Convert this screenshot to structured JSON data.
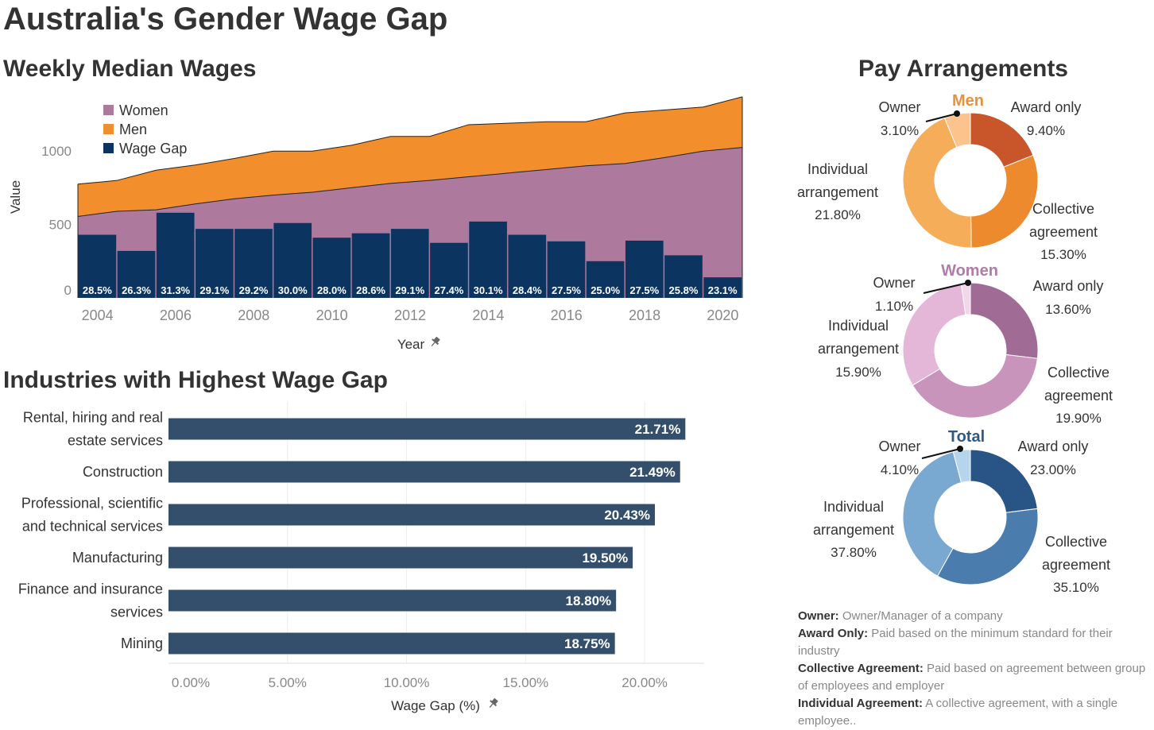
{
  "title": "Australia's Gender Wage Gap",
  "colors": {
    "women": "#ad7a9d",
    "men": "#f28e2c",
    "gap": "#0b3460",
    "industry_bar": "#344f6c",
    "text": "#333333",
    "muted": "#888888"
  },
  "icons": {
    "pin": "pin-icon"
  },
  "chart_data": [
    {
      "type": "area",
      "title": "Weekly Median Wages",
      "xlabel": "Year",
      "ylabel": "Value",
      "x": [
        2004,
        2005,
        2006,
        2007,
        2008,
        2009,
        2010,
        2011,
        2012,
        2013,
        2014,
        2015,
        2016,
        2017,
        2018,
        2019,
        2020,
        2021
      ],
      "x_ticks": [
        "2004",
        "2006",
        "2008",
        "2010",
        "2012",
        "2014",
        "2016",
        "2018",
        "2020"
      ],
      "y_ticks": [
        "0",
        "500",
        "1000"
      ],
      "ylim": [
        0,
        1380
      ],
      "legend": "top-left",
      "series": [
        {
          "name": "Women",
          "values": [
            555,
            590,
            600,
            640,
            675,
            700,
            720,
            750,
            780,
            800,
            825,
            850,
            875,
            900,
            915,
            955,
            1000,
            1025
          ]
        },
        {
          "name": "Men",
          "values": [
            775,
            800,
            870,
            905,
            950,
            1000,
            1000,
            1040,
            1100,
            1100,
            1180,
            1190,
            1200,
            1200,
            1260,
            1280,
            1300,
            1370
          ]
        },
        {
          "name": "Wage Gap",
          "values": [
            430,
            320,
            580,
            470,
            470,
            510,
            410,
            440,
            470,
            375,
            520,
            430,
            385,
            250,
            390,
            290,
            140,
            140
          ]
        }
      ],
      "gap_labels": [
        "28.5%",
        "26.3%",
        "31.3%",
        "29.1%",
        "29.2%",
        "30.0%",
        "28.0%",
        "28.6%",
        "29.1%",
        "27.4%",
        "30.1%",
        "28.4%",
        "27.5%",
        "25.0%",
        "27.5%",
        "25.8%",
        "23.1%"
      ]
    },
    {
      "type": "bar",
      "title": "Industries with Highest Wage Gap",
      "orientation": "horizontal",
      "xlabel": "Wage Gap (%)",
      "ylabel": "",
      "categories": [
        [
          "Rental, hiring and real",
          "estate services"
        ],
        [
          "Construction"
        ],
        [
          "Professional, scientific",
          "and technical services"
        ],
        [
          "Manufacturing"
        ],
        [
          "Finance and insurance",
          "services"
        ],
        [
          "Mining"
        ]
      ],
      "values": [
        21.71,
        21.49,
        20.43,
        19.5,
        18.8,
        18.75
      ],
      "value_labels": [
        "21.71%",
        "21.49%",
        "20.43%",
        "19.50%",
        "18.80%",
        "18.75%"
      ],
      "xlim": [
        0,
        22.5
      ],
      "x_ticks": [
        "0.00%",
        "5.00%",
        "10.00%",
        "15.00%",
        "20.00%"
      ]
    },
    {
      "type": "pie",
      "title": "Pay Arrangements",
      "donuts": [
        {
          "name": "Men",
          "name_color": "#e8913a",
          "slices": [
            {
              "label": "Award only",
              "value": 9.4,
              "text": "9.40%",
              "color": "#c9552a"
            },
            {
              "label": "Collective agreement",
              "value": 15.3,
              "text": "15.30%",
              "color": "#ed8a2d"
            },
            {
              "label": "Individual arrangement",
              "value": 21.8,
              "text": "21.80%",
              "color": "#f5ad5a"
            },
            {
              "label": "Owner",
              "value": 3.1,
              "text": "3.10%",
              "color": "#fcc48c"
            }
          ]
        },
        {
          "name": "Women",
          "name_color": "#b07ca8",
          "slices": [
            {
              "label": "Award only",
              "value": 13.6,
              "text": "13.60%",
              "color": "#a06b95"
            },
            {
              "label": "Collective agreement",
              "value": 19.9,
              "text": "19.90%",
              "color": "#c994bc"
            },
            {
              "label": "Individual arrangement",
              "value": 15.9,
              "text": "15.90%",
              "color": "#e4b6d8"
            },
            {
              "label": "Owner",
              "value": 1.1,
              "text": "1.10%",
              "color": "#f2d6ea"
            }
          ]
        },
        {
          "name": "Total",
          "name_color": "#2f5a86",
          "slices": [
            {
              "label": "Award only",
              "value": 23.0,
              "text": "23.00%",
              "color": "#285585"
            },
            {
              "label": "Collective agreement",
              "value": 35.1,
              "text": "35.10%",
              "color": "#4a7cae"
            },
            {
              "label": "Individual arrangement",
              "value": 37.8,
              "text": "37.80%",
              "color": "#79a8d0"
            },
            {
              "label": "Owner",
              "value": 4.1,
              "text": "4.10%",
              "color": "#b5d5ec"
            }
          ]
        }
      ]
    }
  ],
  "labels": {
    "owner": "Owner",
    "award": "Award only",
    "collective": [
      "Collective",
      "agreement"
    ],
    "individual": [
      "Individual",
      "arrangement"
    ]
  },
  "notes": [
    {
      "term": "Owner:",
      "text": " Owner/Manager of a company"
    },
    {
      "term": "Award Only:",
      "text": " Paid based on the minimum standard for their industry"
    },
    {
      "term": "Collective Agreement:",
      "text": " Paid based on agreement between group of employees and employer"
    },
    {
      "term": "Individual Agreement:",
      "text": " A collective agreement, with a single employee.."
    }
  ]
}
